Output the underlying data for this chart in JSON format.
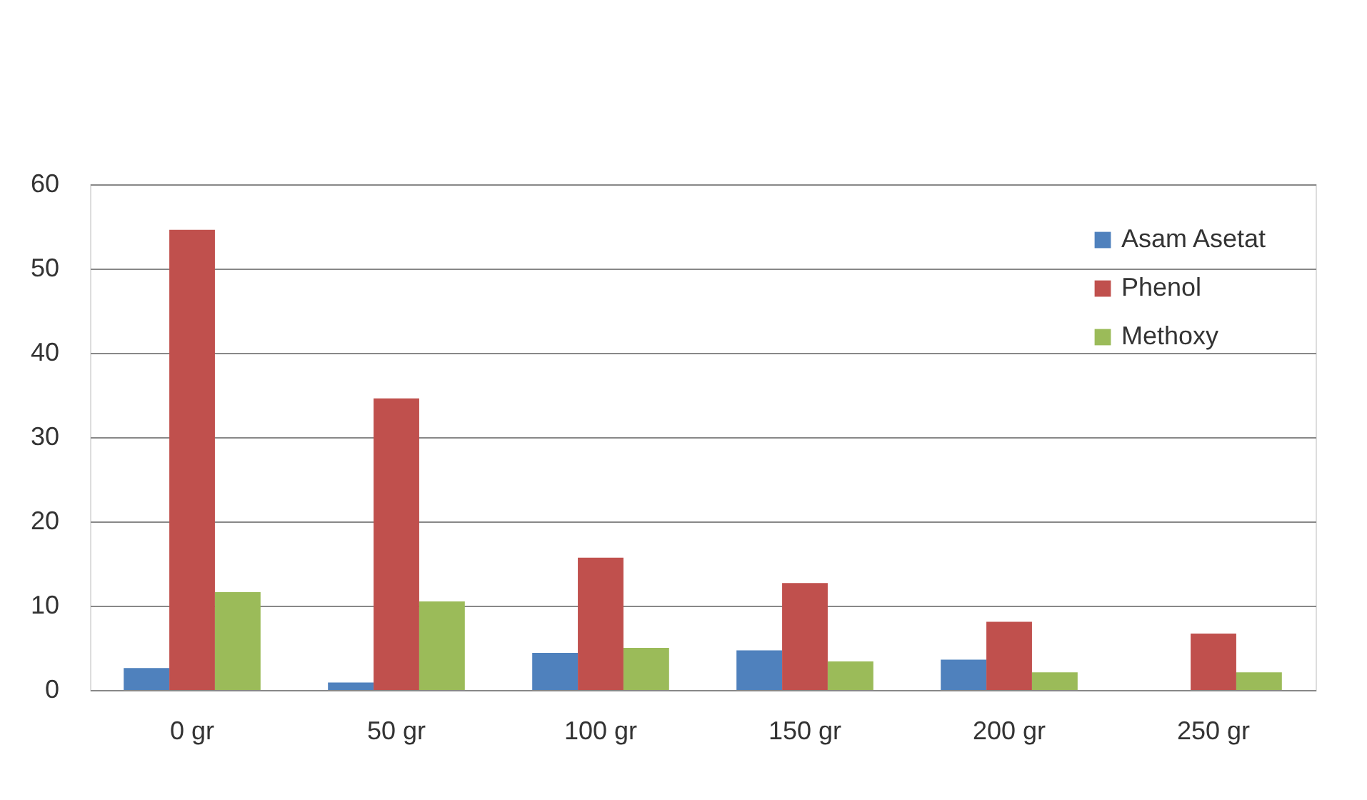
{
  "chart_data": {
    "type": "bar",
    "categories": [
      "0 gr",
      "50 gr",
      "100 gr",
      "150 gr",
      "200 gr",
      "250 gr"
    ],
    "series": [
      {
        "name": "Asam Asetat",
        "color": "#4f81bd",
        "values": [
          2.6,
          0.9,
          4.4,
          4.7,
          3.6,
          null
        ]
      },
      {
        "name": "Phenol",
        "color": "#c0504d",
        "values": [
          54.6,
          34.6,
          15.7,
          12.7,
          8.1,
          6.7
        ]
      },
      {
        "name": "Methoxy",
        "color": "#9bbb59",
        "values": [
          11.6,
          10.5,
          5.0,
          3.4,
          2.1,
          2.1
        ]
      }
    ],
    "ylim": [
      0,
      60
    ],
    "yticks": [
      0,
      10,
      20,
      30,
      40,
      50,
      60
    ],
    "grid": "y",
    "legend": "top right"
  }
}
